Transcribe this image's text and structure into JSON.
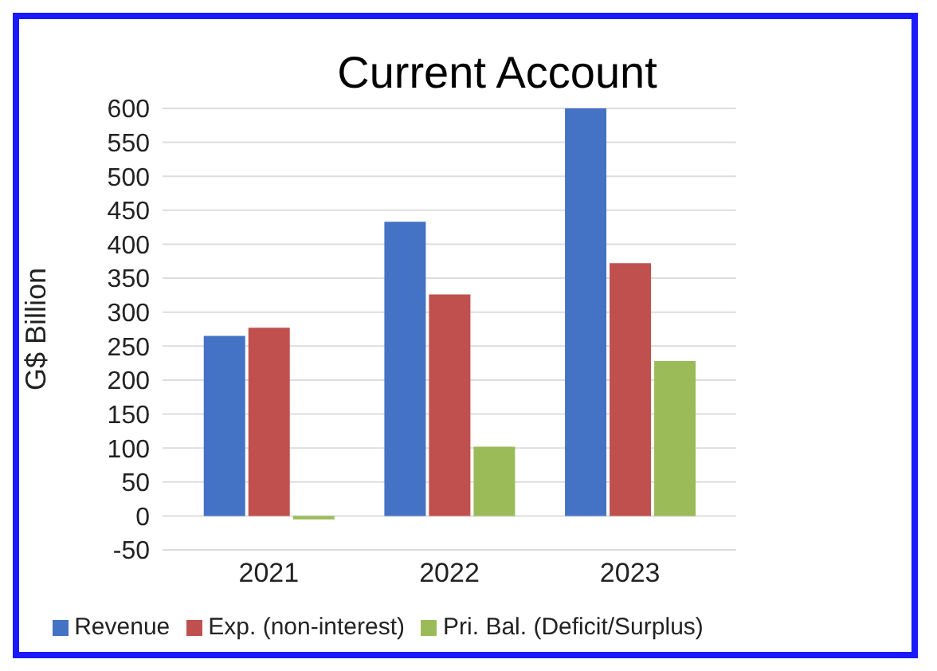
{
  "chart_data": {
    "type": "bar",
    "title": "Current Account",
    "ylabel": "G$ Billion",
    "categories": [
      "2021",
      "2022",
      "2023"
    ],
    "series": [
      {
        "name": "Revenue",
        "color": "#4472c4",
        "values": [
          265,
          433,
          600
        ]
      },
      {
        "name": "Exp. (non-interest)",
        "color": "#c0504d",
        "values": [
          277,
          326,
          372
        ]
      },
      {
        "name": "Pri. Bal. (Deficit/Surplus)",
        "color": "#9bbb59",
        "values": [
          -5,
          102,
          228
        ]
      }
    ],
    "ylim": [
      -50,
      600
    ],
    "yticks": [
      -50,
      0,
      50,
      100,
      150,
      200,
      250,
      300,
      350,
      400,
      450,
      500,
      550,
      600
    ],
    "grid": "y",
    "legend": "bottom"
  }
}
